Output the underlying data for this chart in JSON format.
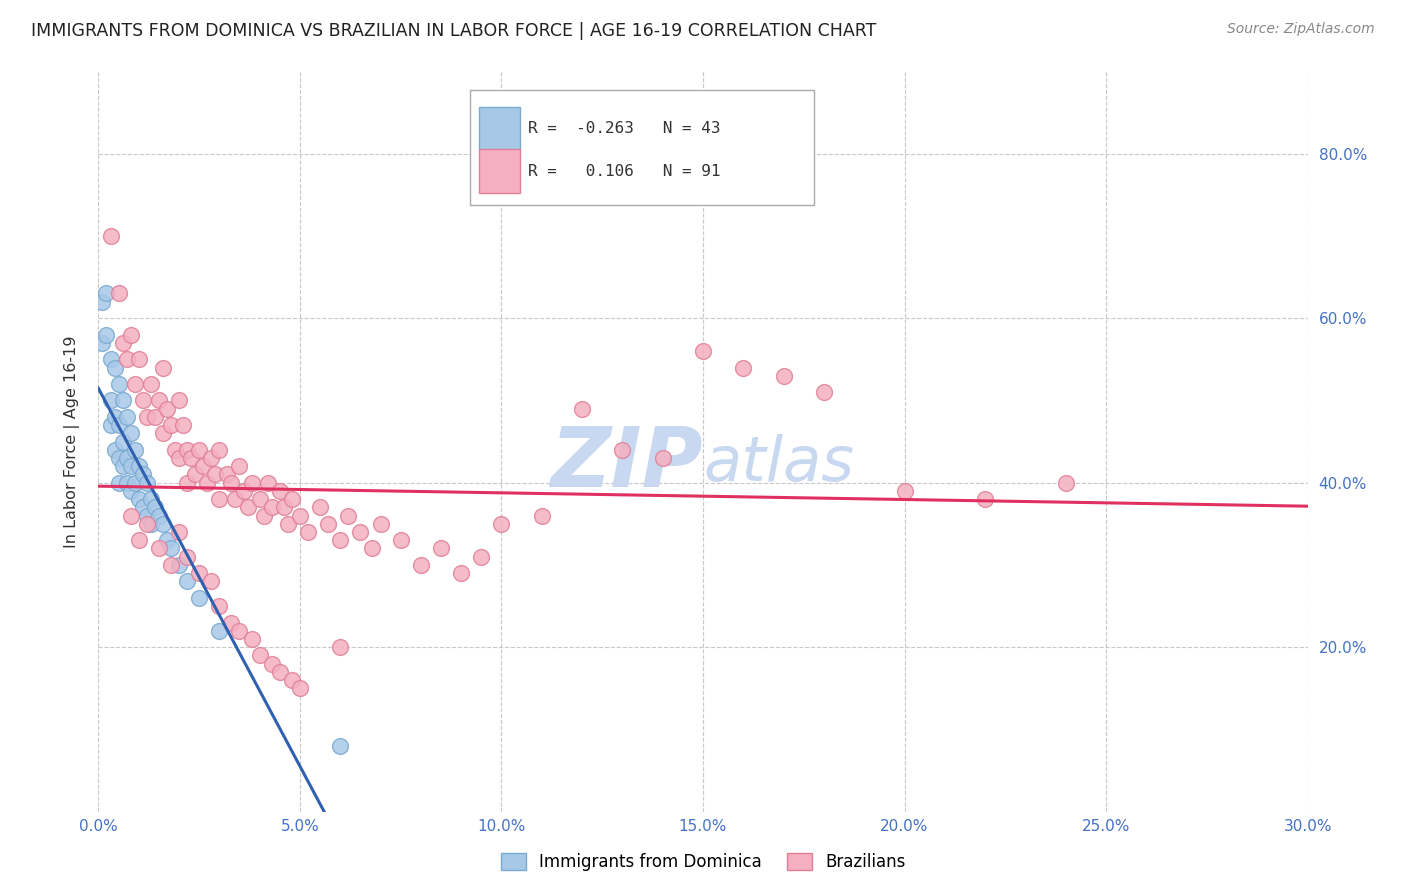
{
  "title": "IMMIGRANTS FROM DOMINICA VS BRAZILIAN IN LABOR FORCE | AGE 16-19 CORRELATION CHART",
  "source": "Source: ZipAtlas.com",
  "ylabel": "In Labor Force | Age 16-19",
  "xlim": [
    0.0,
    0.3
  ],
  "ylim": [
    0.0,
    0.9
  ],
  "yticks": [
    0.2,
    0.4,
    0.6,
    0.8
  ],
  "xticks": [
    0.0,
    0.05,
    0.1,
    0.15,
    0.2,
    0.25,
    0.3
  ],
  "blue_color": "#a8c8e8",
  "pink_color": "#f4b0c0",
  "blue_edge": "#7aaad0",
  "pink_edge": "#e08098",
  "blue_line_color": "#3060b0",
  "pink_line_color": "#e03060",
  "blue_R": -0.263,
  "blue_N": 43,
  "pink_R": 0.106,
  "pink_N": 91,
  "tick_color": "#4472c4",
  "grid_color": "#c8c8c8",
  "watermark": "ZIPAtlas",
  "watermark_color": "#c8d8f0",
  "blue_scatter_x": [
    0.001,
    0.001,
    0.002,
    0.002,
    0.003,
    0.003,
    0.003,
    0.004,
    0.004,
    0.004,
    0.005,
    0.005,
    0.005,
    0.005,
    0.006,
    0.006,
    0.006,
    0.007,
    0.007,
    0.007,
    0.008,
    0.008,
    0.008,
    0.009,
    0.009,
    0.01,
    0.01,
    0.011,
    0.011,
    0.012,
    0.012,
    0.013,
    0.013,
    0.014,
    0.015,
    0.016,
    0.017,
    0.018,
    0.02,
    0.022,
    0.025,
    0.03,
    0.06
  ],
  "blue_scatter_y": [
    0.62,
    0.57,
    0.63,
    0.58,
    0.55,
    0.5,
    0.47,
    0.54,
    0.48,
    0.44,
    0.52,
    0.47,
    0.43,
    0.4,
    0.5,
    0.45,
    0.42,
    0.48,
    0.43,
    0.4,
    0.46,
    0.42,
    0.39,
    0.44,
    0.4,
    0.42,
    0.38,
    0.41,
    0.37,
    0.4,
    0.36,
    0.38,
    0.35,
    0.37,
    0.36,
    0.35,
    0.33,
    0.32,
    0.3,
    0.28,
    0.26,
    0.22,
    0.08
  ],
  "pink_scatter_x": [
    0.003,
    0.005,
    0.006,
    0.007,
    0.008,
    0.009,
    0.01,
    0.011,
    0.012,
    0.013,
    0.014,
    0.015,
    0.016,
    0.016,
    0.017,
    0.018,
    0.019,
    0.02,
    0.02,
    0.021,
    0.022,
    0.022,
    0.023,
    0.024,
    0.025,
    0.026,
    0.027,
    0.028,
    0.029,
    0.03,
    0.03,
    0.032,
    0.033,
    0.034,
    0.035,
    0.036,
    0.037,
    0.038,
    0.04,
    0.041,
    0.042,
    0.043,
    0.045,
    0.046,
    0.047,
    0.048,
    0.05,
    0.052,
    0.055,
    0.057,
    0.06,
    0.062,
    0.065,
    0.068,
    0.07,
    0.075,
    0.08,
    0.085,
    0.09,
    0.095,
    0.1,
    0.11,
    0.12,
    0.13,
    0.14,
    0.15,
    0.16,
    0.17,
    0.18,
    0.2,
    0.22,
    0.24,
    0.008,
    0.01,
    0.012,
    0.015,
    0.018,
    0.02,
    0.022,
    0.025,
    0.028,
    0.03,
    0.033,
    0.035,
    0.038,
    0.04,
    0.043,
    0.045,
    0.048,
    0.05,
    0.06
  ],
  "pink_scatter_y": [
    0.7,
    0.63,
    0.57,
    0.55,
    0.58,
    0.52,
    0.55,
    0.5,
    0.48,
    0.52,
    0.48,
    0.5,
    0.46,
    0.54,
    0.49,
    0.47,
    0.44,
    0.5,
    0.43,
    0.47,
    0.44,
    0.4,
    0.43,
    0.41,
    0.44,
    0.42,
    0.4,
    0.43,
    0.41,
    0.44,
    0.38,
    0.41,
    0.4,
    0.38,
    0.42,
    0.39,
    0.37,
    0.4,
    0.38,
    0.36,
    0.4,
    0.37,
    0.39,
    0.37,
    0.35,
    0.38,
    0.36,
    0.34,
    0.37,
    0.35,
    0.33,
    0.36,
    0.34,
    0.32,
    0.35,
    0.33,
    0.3,
    0.32,
    0.29,
    0.31,
    0.35,
    0.36,
    0.49,
    0.44,
    0.43,
    0.56,
    0.54,
    0.53,
    0.51,
    0.39,
    0.38,
    0.4,
    0.36,
    0.33,
    0.35,
    0.32,
    0.3,
    0.34,
    0.31,
    0.29,
    0.28,
    0.25,
    0.23,
    0.22,
    0.21,
    0.19,
    0.18,
    0.17,
    0.16,
    0.15,
    0.2
  ]
}
